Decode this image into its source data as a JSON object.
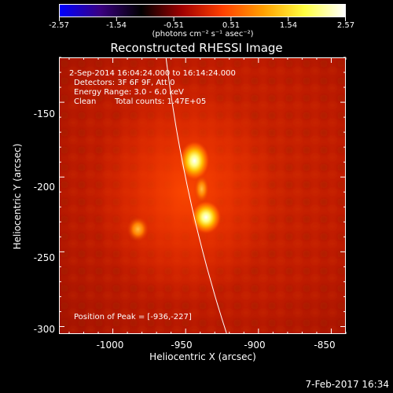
{
  "colorbar": {
    "labels": [
      "-2.57",
      "-1.54",
      "-0.51",
      "0.51",
      "1.54",
      "2.57"
    ],
    "unit": "(photons cm⁻² s⁻¹ asec⁻²)",
    "colors": [
      "#0000ff",
      "#3a0080",
      "#000000",
      "#a00000",
      "#ff4000",
      "#ffa000",
      "#ffff40",
      "#ffffff"
    ]
  },
  "title": "Reconstructed RHESSI Image",
  "annotations": {
    "time_range": "2-Sep-2014 16:04:24.000 to 16:14:24.000",
    "detectors": "Detectors: 3F 6F 9F, Att 0",
    "energy": "Energy Range: 3.0 - 6.0 keV",
    "algorithm": "Clean",
    "total_counts": "Total counts: 1.47E+05",
    "peak": "Position of Peak = [-936,-227]"
  },
  "axes": {
    "xlabel": "Heliocentric X (arcsec)",
    "ylabel": "Heliocentric Y (arcsec)",
    "xticks": [
      "-1000",
      "-950",
      "-900",
      "-850"
    ],
    "yticks": [
      "-150",
      "-200",
      "-250",
      "-300"
    ],
    "xrange": [
      -1037,
      -840
    ],
    "yrange": [
      -305,
      -120
    ]
  },
  "image": {
    "background_color": "#c81e00",
    "sources": [
      {
        "name": "upper source",
        "x": -944,
        "y": -189,
        "intensity": "high"
      },
      {
        "name": "peak source",
        "x": -936,
        "y": -227,
        "intensity": "peak"
      },
      {
        "name": "left source",
        "x": -983,
        "y": -235,
        "intensity": "medium"
      }
    ],
    "limb_color": "#ffffff"
  },
  "timestamp": "7-Feb-2017 16:34"
}
